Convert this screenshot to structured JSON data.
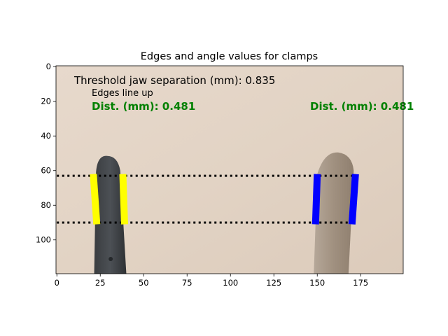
{
  "chart_data": {
    "type": "image",
    "title": "Edges and angle values for clamps",
    "xlim": [
      -0.5,
      199.5
    ],
    "ylim": [
      119.5,
      -0.5
    ],
    "xticks": [
      0,
      25,
      50,
      75,
      100,
      125,
      150,
      175
    ],
    "yticks": [
      0,
      20,
      40,
      60,
      80,
      100
    ],
    "annotations": {
      "threshold": "Threshold jaw separation (mm): 0.835",
      "edges_line_up": "Edges line up",
      "dist_left": "Dist. (mm): 0.481",
      "dist_right": "Dist. (mm): 0.481"
    },
    "reference_lines": [
      {
        "y": 63,
        "x_range": [
          0,
          170
        ],
        "style": "dotted",
        "color": "#000000"
      },
      {
        "y": 90,
        "x_range": [
          0,
          170
        ],
        "style": "dotted",
        "color": "#000000"
      }
    ],
    "edge_segments": [
      {
        "color": "#ffff00",
        "x1": 21,
        "y1": 62,
        "x2": 23,
        "y2": 91
      },
      {
        "color": "#ffff00",
        "x1": 38,
        "y1": 62,
        "x2": 39,
        "y2": 91
      },
      {
        "color": "#0000ff",
        "x1": 150,
        "y1": 62,
        "x2": 149,
        "y2": 91
      },
      {
        "color": "#0000ff",
        "x1": 172,
        "y1": 62,
        "x2": 170,
        "y2": 91
      }
    ],
    "text_colors": {
      "annotation": "#000000",
      "distance": "#008000"
    },
    "background_color": "#e4d6c8"
  }
}
